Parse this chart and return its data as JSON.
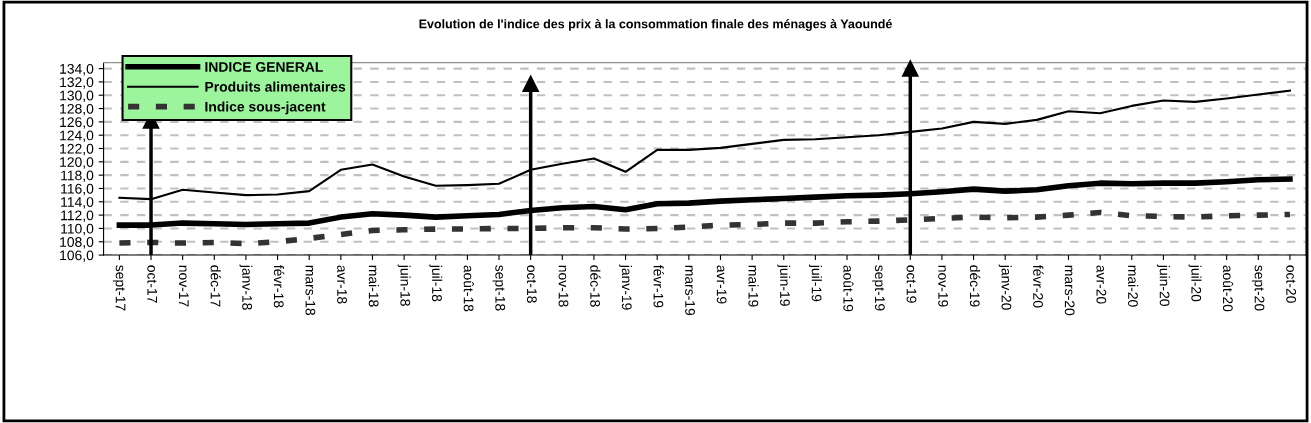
{
  "chart_data": {
    "type": "line",
    "title": "Evolution de l'indice des prix à la consommation finale des ménages à Yaoundé",
    "categories": [
      "sept-17",
      "oct-17",
      "nov-17",
      "déc-17",
      "janv-18",
      "févr-18",
      "mars-18",
      "avr-18",
      "mai-18",
      "juin-18",
      "juil-18",
      "août-18",
      "sept-18",
      "oct-18",
      "nov-18",
      "déc-18",
      "janv-19",
      "févr-19",
      "mars-19",
      "avr-19",
      "mai-19",
      "juin-19",
      "juil-19",
      "août-19",
      "sept-19",
      "oct-19",
      "nov-19",
      "déc-19",
      "janv-20",
      "févr-20",
      "mars-20",
      "avr-20",
      "mai-20",
      "juin-20",
      "juil-20",
      "août-20",
      "sept-20",
      "oct-20"
    ],
    "series": [
      {
        "name": "INDICE GENERAL",
        "color": "#000000",
        "line_style": "solid",
        "values": [
          110.5,
          110.5,
          110.8,
          110.7,
          110.6,
          110.7,
          110.8,
          111.7,
          112.2,
          112.0,
          111.7,
          111.9,
          112.1,
          112.7,
          113.1,
          113.3,
          112.8,
          113.7,
          113.8,
          114.1,
          114.3,
          114.5,
          114.7,
          114.9,
          115.0,
          115.2,
          115.5,
          115.9,
          115.6,
          115.8,
          116.4,
          116.8,
          116.7,
          116.8,
          116.8,
          117.0,
          117.3,
          117.4
        ]
      },
      {
        "name": "Produits alimentaires",
        "color": "#000000",
        "line_style": "solid",
        "values": [
          114.6,
          114.4,
          115.8,
          115.4,
          115.0,
          115.1,
          115.6,
          118.8,
          119.6,
          117.8,
          116.4,
          116.5,
          116.7,
          118.8,
          119.7,
          120.5,
          118.5,
          121.8,
          121.8,
          122.1,
          122.7,
          123.3,
          123.4,
          123.7,
          124.0,
          124.5,
          125.0,
          126.0,
          125.7,
          126.3,
          127.6,
          127.3,
          128.4,
          129.2,
          129.0,
          129.5,
          130.1,
          130.7
        ]
      },
      {
        "name": "Indice sous-jacent",
        "color": "#333333",
        "line_style": "dashed",
        "values": [
          107.8,
          107.9,
          107.8,
          107.9,
          107.7,
          108.0,
          108.5,
          109.1,
          109.7,
          109.8,
          109.9,
          109.9,
          110.0,
          110.0,
          110.1,
          110.1,
          109.9,
          110.0,
          110.2,
          110.5,
          110.6,
          110.8,
          110.8,
          111.0,
          111.1,
          111.3,
          111.5,
          111.7,
          111.6,
          111.7,
          112.0,
          112.4,
          111.9,
          111.8,
          111.7,
          111.9,
          112.0,
          112.1
        ]
      }
    ],
    "ylim": [
      106,
      134.9
    ],
    "yticks": [
      {
        "value": 106,
        "label": "106,0"
      },
      {
        "value": 108,
        "label": "108,0"
      },
      {
        "value": 110,
        "label": "110,0"
      },
      {
        "value": 112,
        "label": "112,0"
      },
      {
        "value": 114,
        "label": "114,0"
      },
      {
        "value": 116,
        "label": "116,0"
      },
      {
        "value": 118,
        "label": "118,0"
      },
      {
        "value": 120,
        "label": "120,0"
      },
      {
        "value": 122,
        "label": "122,0"
      },
      {
        "value": 124,
        "label": "124,0"
      },
      {
        "value": 126,
        "label": "126,0"
      },
      {
        "value": 128,
        "label": "128,0"
      },
      {
        "value": 130,
        "label": "130,0"
      },
      {
        "value": 132,
        "label": "132,0"
      },
      {
        "value": 134,
        "label": "134,0"
      }
    ],
    "ref_lines": [
      {
        "axis": "x",
        "value": "oct-17"
      },
      {
        "axis": "x",
        "value": "oct-18"
      },
      {
        "axis": "x",
        "value": "oct-19"
      }
    ],
    "grid": "y",
    "legend": "top left",
    "marker": "none"
  }
}
